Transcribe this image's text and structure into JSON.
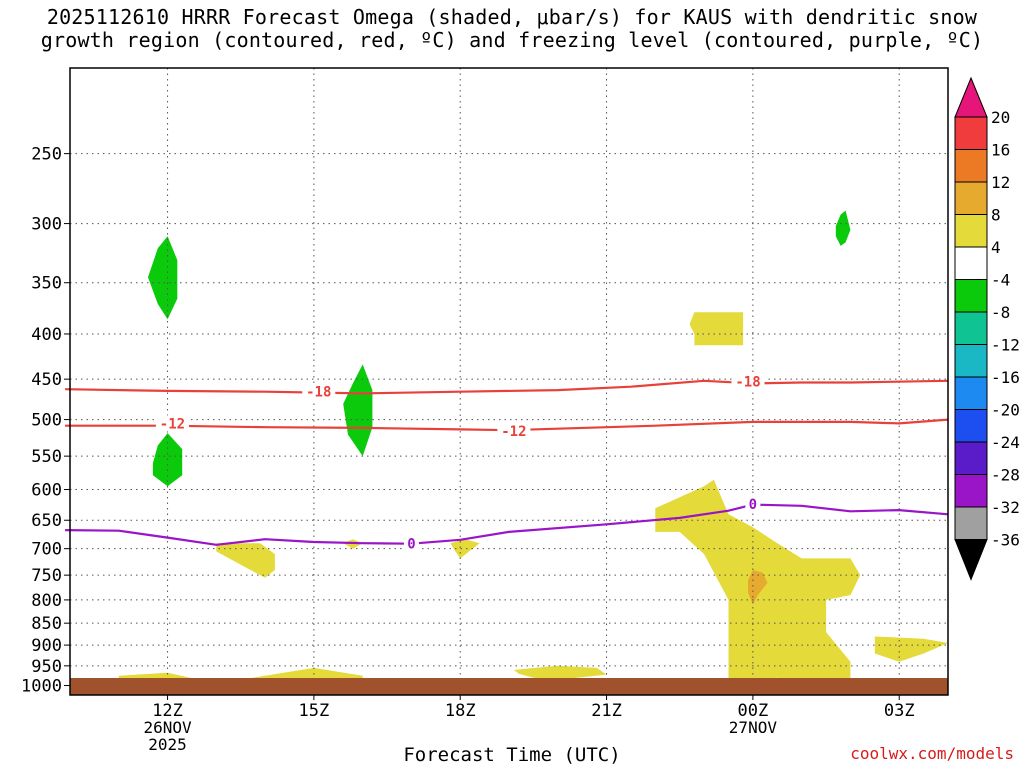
{
  "title": {
    "line1": "2025112610 HRRR Forecast Omega (shaded, μbar/s) for KAUS with dendritic snow",
    "line2": "growth region (contoured, red, ºC) and freezing level (contoured, purple, ºC)"
  },
  "chart_data": {
    "type": "area",
    "xlabel": "Forecast Time (UTC)",
    "x_ticks": [
      {
        "hour": 12,
        "label": "12Z",
        "sub1": "26NOV",
        "sub2": "2025"
      },
      {
        "hour": 15,
        "label": "15Z",
        "sub1": "",
        "sub2": ""
      },
      {
        "hour": 18,
        "label": "18Z",
        "sub1": "",
        "sub2": ""
      },
      {
        "hour": 21,
        "label": "21Z",
        "sub1": "",
        "sub2": ""
      },
      {
        "hour": 24,
        "label": "00Z",
        "sub1": "27NOV",
        "sub2": ""
      },
      {
        "hour": 27,
        "label": "03Z",
        "sub1": "",
        "sub2": ""
      }
    ],
    "xlim_hours": [
      10,
      28
    ],
    "y_ticks": [
      250,
      300,
      350,
      400,
      450,
      500,
      550,
      600,
      650,
      700,
      750,
      800,
      850,
      900,
      950,
      1000
    ],
    "ylim_hpa": [
      200,
      1025
    ],
    "y_scale": "log-pressure",
    "grid": true,
    "colorbar": {
      "labels": [
        "20",
        "16",
        "12",
        "8",
        "4",
        "-4",
        "-8",
        "-12",
        "-16",
        "-20",
        "-24",
        "-28",
        "-32",
        "-36"
      ],
      "colors": [
        "#f03c3c",
        "#ec7a24",
        "#e6aa2e",
        "#e4da3a",
        "#ffffff",
        "#0bc90b",
        "#10c393",
        "#19b8c4",
        "#1c8af0",
        "#1c4ef0",
        "#5a1cc8",
        "#9a14c8",
        "#a0a0a0"
      ],
      "top_arrow_color": "#e6157a",
      "bottom_arrow_color": "#000000"
    },
    "contours": [
      {
        "label": "-18",
        "color": "#e8413a",
        "points": [
          [
            9.9,
            462
          ],
          [
            12,
            464
          ],
          [
            14,
            465
          ],
          [
            16,
            467
          ],
          [
            18,
            465
          ],
          [
            20,
            463
          ],
          [
            21.5,
            459
          ],
          [
            23,
            452
          ],
          [
            24,
            455
          ],
          [
            25,
            454
          ],
          [
            26,
            454
          ],
          [
            28,
            452
          ]
        ]
      },
      {
        "label": "-12",
        "color": "#e8413a",
        "points": [
          [
            9.9,
            508
          ],
          [
            12,
            508
          ],
          [
            14,
            510
          ],
          [
            16,
            511
          ],
          [
            18,
            513
          ],
          [
            19,
            514
          ],
          [
            20,
            512
          ],
          [
            22,
            508
          ],
          [
            24,
            503
          ],
          [
            26,
            503
          ],
          [
            27,
            505
          ],
          [
            28,
            500
          ]
        ]
      },
      {
        "label": "0",
        "color": "#9a14c8",
        "points": [
          [
            9.9,
            667
          ],
          [
            11,
            668
          ],
          [
            12,
            680
          ],
          [
            13,
            693
          ],
          [
            14,
            683
          ],
          [
            15,
            688
          ],
          [
            16,
            690
          ],
          [
            17,
            691
          ],
          [
            18,
            684
          ],
          [
            19,
            670
          ],
          [
            21,
            657
          ],
          [
            22.5,
            646
          ],
          [
            23.5,
            634
          ],
          [
            24,
            624
          ],
          [
            25,
            626
          ],
          [
            26,
            635
          ],
          [
            27,
            633
          ],
          [
            28,
            640
          ]
        ]
      }
    ],
    "contour_labels": [
      {
        "text": "-18",
        "hour": 15.1,
        "p": 465,
        "color": "#e8413a"
      },
      {
        "text": "-18",
        "hour": 23.9,
        "p": 453,
        "color": "#e8413a"
      },
      {
        "text": "-12",
        "hour": 12.1,
        "p": 505,
        "color": "#e8413a"
      },
      {
        "text": "-12",
        "hour": 19.1,
        "p": 515,
        "color": "#e8413a"
      },
      {
        "text": "0",
        "hour": 17.0,
        "p": 691,
        "color": "#9a14c8"
      },
      {
        "text": "0",
        "hour": 24.0,
        "p": 623,
        "color": "#9a14c8"
      }
    ],
    "omega_regions": [
      {
        "value": -8,
        "color": "#0bc90b",
        "points": [
          [
            11.6,
            345
          ],
          [
            11.8,
            320
          ],
          [
            12.0,
            310
          ],
          [
            12.2,
            330
          ],
          [
            12.2,
            365
          ],
          [
            12.0,
            385
          ],
          [
            11.8,
            370
          ]
        ]
      },
      {
        "value": -8,
        "color": "#0bc90b",
        "points": [
          [
            11.7,
            560
          ],
          [
            11.8,
            535
          ],
          [
            12.0,
            518
          ],
          [
            12.3,
            540
          ],
          [
            12.3,
            578
          ],
          [
            12.0,
            595
          ],
          [
            11.7,
            578
          ]
        ]
      },
      {
        "value": -8,
        "color": "#0bc90b",
        "points": [
          [
            15.6,
            480
          ],
          [
            15.8,
            455
          ],
          [
            16.0,
            433
          ],
          [
            16.2,
            463
          ],
          [
            16.2,
            510
          ],
          [
            16.0,
            550
          ],
          [
            15.7,
            520
          ]
        ]
      },
      {
        "value": -8,
        "color": "#0bc90b",
        "points": [
          [
            25.7,
            302
          ],
          [
            25.8,
            293
          ],
          [
            25.9,
            290
          ],
          [
            26.0,
            305
          ],
          [
            25.9,
            315
          ],
          [
            25.8,
            318
          ],
          [
            25.7,
            310
          ]
        ]
      },
      {
        "value": 4,
        "color": "#e4da3a",
        "points": [
          [
            22.8,
            378
          ],
          [
            23.8,
            378
          ],
          [
            23.8,
            412
          ],
          [
            22.8,
            412
          ],
          [
            22.8,
            400
          ],
          [
            22.7,
            390
          ]
        ]
      },
      {
        "value": 4,
        "color": "#e4da3a",
        "points": [
          [
            13.0,
            690
          ],
          [
            13.9,
            690
          ],
          [
            14.2,
            710
          ],
          [
            14.2,
            740
          ],
          [
            14.0,
            755
          ],
          [
            13.6,
            735
          ],
          [
            13.0,
            705
          ]
        ]
      },
      {
        "value": 4,
        "color": "#e4da3a",
        "points": [
          [
            15.6,
            690
          ],
          [
            15.8,
            683
          ],
          [
            16.0,
            690
          ],
          [
            15.8,
            700
          ]
        ]
      },
      {
        "value": 4,
        "color": "#e4da3a",
        "points": [
          [
            17.8,
            690
          ],
          [
            18.1,
            683
          ],
          [
            18.4,
            690
          ],
          [
            18.0,
            718
          ],
          [
            17.9,
            705
          ]
        ]
      },
      {
        "value": 4,
        "color": "#e4da3a",
        "points": [
          [
            22.0,
            630
          ],
          [
            23.0,
            595
          ],
          [
            23.2,
            585
          ],
          [
            23.5,
            640
          ],
          [
            24.0,
            662
          ],
          [
            24.5,
            690
          ],
          [
            25,
            718
          ],
          [
            26.0,
            718
          ],
          [
            26.2,
            750
          ],
          [
            26.0,
            790
          ],
          [
            25.5,
            800
          ],
          [
            25.5,
            870
          ],
          [
            26.0,
            940
          ],
          [
            26.0,
            990
          ],
          [
            25,
            1000
          ],
          [
            24.5,
            980
          ],
          [
            23.5,
            990
          ],
          [
            23.5,
            900
          ],
          [
            23.5,
            800
          ],
          [
            23.0,
            710
          ],
          [
            22.5,
            670
          ],
          [
            22.0,
            670
          ]
        ]
      },
      {
        "value": 4,
        "color": "#e4da3a",
        "points": [
          [
            26.5,
            880
          ],
          [
            27.5,
            885
          ],
          [
            28.0,
            895
          ],
          [
            27.5,
            920
          ],
          [
            27.0,
            940
          ],
          [
            26.5,
            920
          ]
        ]
      },
      {
        "value": 4,
        "color": "#e4da3a",
        "points": [
          [
            19.1,
            960
          ],
          [
            20.0,
            950
          ],
          [
            20.8,
            955
          ],
          [
            21.0,
            972
          ],
          [
            20.0,
            985
          ],
          [
            19.5,
            980
          ],
          [
            19.2,
            970
          ]
        ]
      },
      {
        "value": 4,
        "color": "#e4da3a",
        "points": [
          [
            11.0,
            975
          ],
          [
            12.0,
            967
          ],
          [
            13.0,
            995
          ],
          [
            14.0,
            975
          ],
          [
            15.0,
            955
          ],
          [
            16.0,
            975
          ],
          [
            16.0,
            1000
          ],
          [
            15.0,
            1003
          ],
          [
            12.0,
            1003
          ],
          [
            11.0,
            1003
          ]
        ]
      },
      {
        "value": 8,
        "color": "#e6aa2e",
        "points": [
          [
            23.9,
            760
          ],
          [
            24.0,
            740
          ],
          [
            24.2,
            745
          ],
          [
            24.3,
            765
          ],
          [
            24.1,
            790
          ],
          [
            24.0,
            810
          ],
          [
            23.9,
            785
          ]
        ]
      }
    ]
  },
  "watermark": "coolwx.com/models"
}
